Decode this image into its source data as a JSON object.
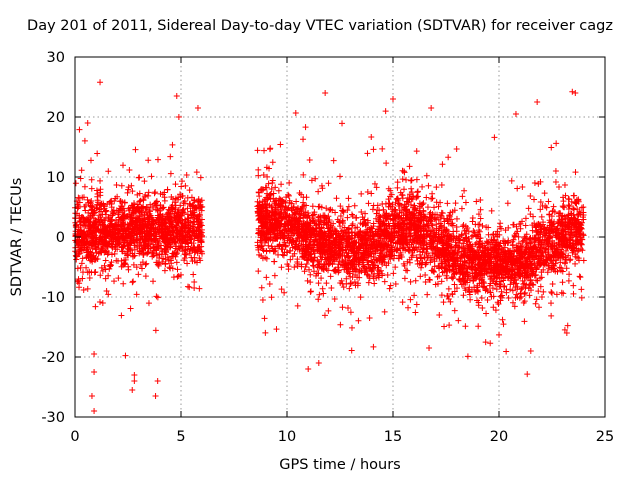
{
  "chart_data": {
    "type": "scatter",
    "title": "Day 201 of 2011, Sidereal Day-to-day VTEC variation (SDTVAR) for receiver cagz",
    "xlabel": "GPS time / hours",
    "ylabel": "SDTVAR / TECUs",
    "xlim": [
      0,
      25
    ],
    "ylim": [
      -30,
      30
    ],
    "xticks": [
      "0",
      "5",
      "10",
      "15",
      "20",
      "25"
    ],
    "yticks": [
      "30",
      "20",
      "10",
      "0",
      "-10",
      "-20",
      "-30"
    ],
    "grid": true,
    "marker": "+",
    "color": "#ff0000",
    "data_segments": [
      {
        "x_start": 0.0,
        "x_end": 6.0
      },
      {
        "x_start": 8.6,
        "x_end": 24.0
      }
    ],
    "series": [
      {
        "name": "SDTVAR",
        "trend": [
          {
            "x": 0.0,
            "y": 0.0
          },
          {
            "x": 1.0,
            "y": 0.5
          },
          {
            "x": 2.0,
            "y": 0.5
          },
          {
            "x": 3.0,
            "y": 1.0
          },
          {
            "x": 4.0,
            "y": 1.0
          },
          {
            "x": 5.0,
            "y": 1.5
          },
          {
            "x": 6.0,
            "y": 1.5
          },
          {
            "x": 8.6,
            "y": 3.0
          },
          {
            "x": 10.0,
            "y": 2.0
          },
          {
            "x": 11.0,
            "y": 0.0
          },
          {
            "x": 12.0,
            "y": -1.5
          },
          {
            "x": 13.0,
            "y": -2.5
          },
          {
            "x": 14.0,
            "y": -1.5
          },
          {
            "x": 15.0,
            "y": 1.0
          },
          {
            "x": 16.0,
            "y": 2.0
          },
          {
            "x": 17.0,
            "y": -1.0
          },
          {
            "x": 18.0,
            "y": -3.0
          },
          {
            "x": 19.0,
            "y": -4.0
          },
          {
            "x": 20.0,
            "y": -4.5
          },
          {
            "x": 21.0,
            "y": -4.5
          },
          {
            "x": 22.0,
            "y": -2.0
          },
          {
            "x": 23.0,
            "y": 0.0
          },
          {
            "x": 24.0,
            "y": 1.5
          }
        ],
        "outliers": [
          {
            "x": 0.9,
            "y": -29
          },
          {
            "x": 0.8,
            "y": -26.5
          },
          {
            "x": 0.9,
            "y": -22.5
          },
          {
            "x": 0.9,
            "y": -19.5
          },
          {
            "x": 0.6,
            "y": 19
          },
          {
            "x": 2.8,
            "y": -23
          },
          {
            "x": 2.7,
            "y": -25.5
          },
          {
            "x": 2.8,
            "y": -24
          },
          {
            "x": 3.8,
            "y": -26.5
          },
          {
            "x": 3.9,
            "y": -24
          },
          {
            "x": 4.8,
            "y": 23.5
          },
          {
            "x": 4.9,
            "y": 20
          },
          {
            "x": 5.8,
            "y": 21.5
          },
          {
            "x": 11.0,
            "y": -22
          },
          {
            "x": 11.8,
            "y": 24
          },
          {
            "x": 11.5,
            "y": -21
          },
          {
            "x": 15.0,
            "y": 23
          },
          {
            "x": 16.8,
            "y": 21.5
          },
          {
            "x": 16.7,
            "y": -18.5
          },
          {
            "x": 20.8,
            "y": 20.5
          },
          {
            "x": 21.8,
            "y": 22.5
          },
          {
            "x": 21.5,
            "y": -19
          },
          {
            "x": 23.6,
            "y": 24
          },
          {
            "x": 23.2,
            "y": -16
          }
        ]
      }
    ]
  }
}
